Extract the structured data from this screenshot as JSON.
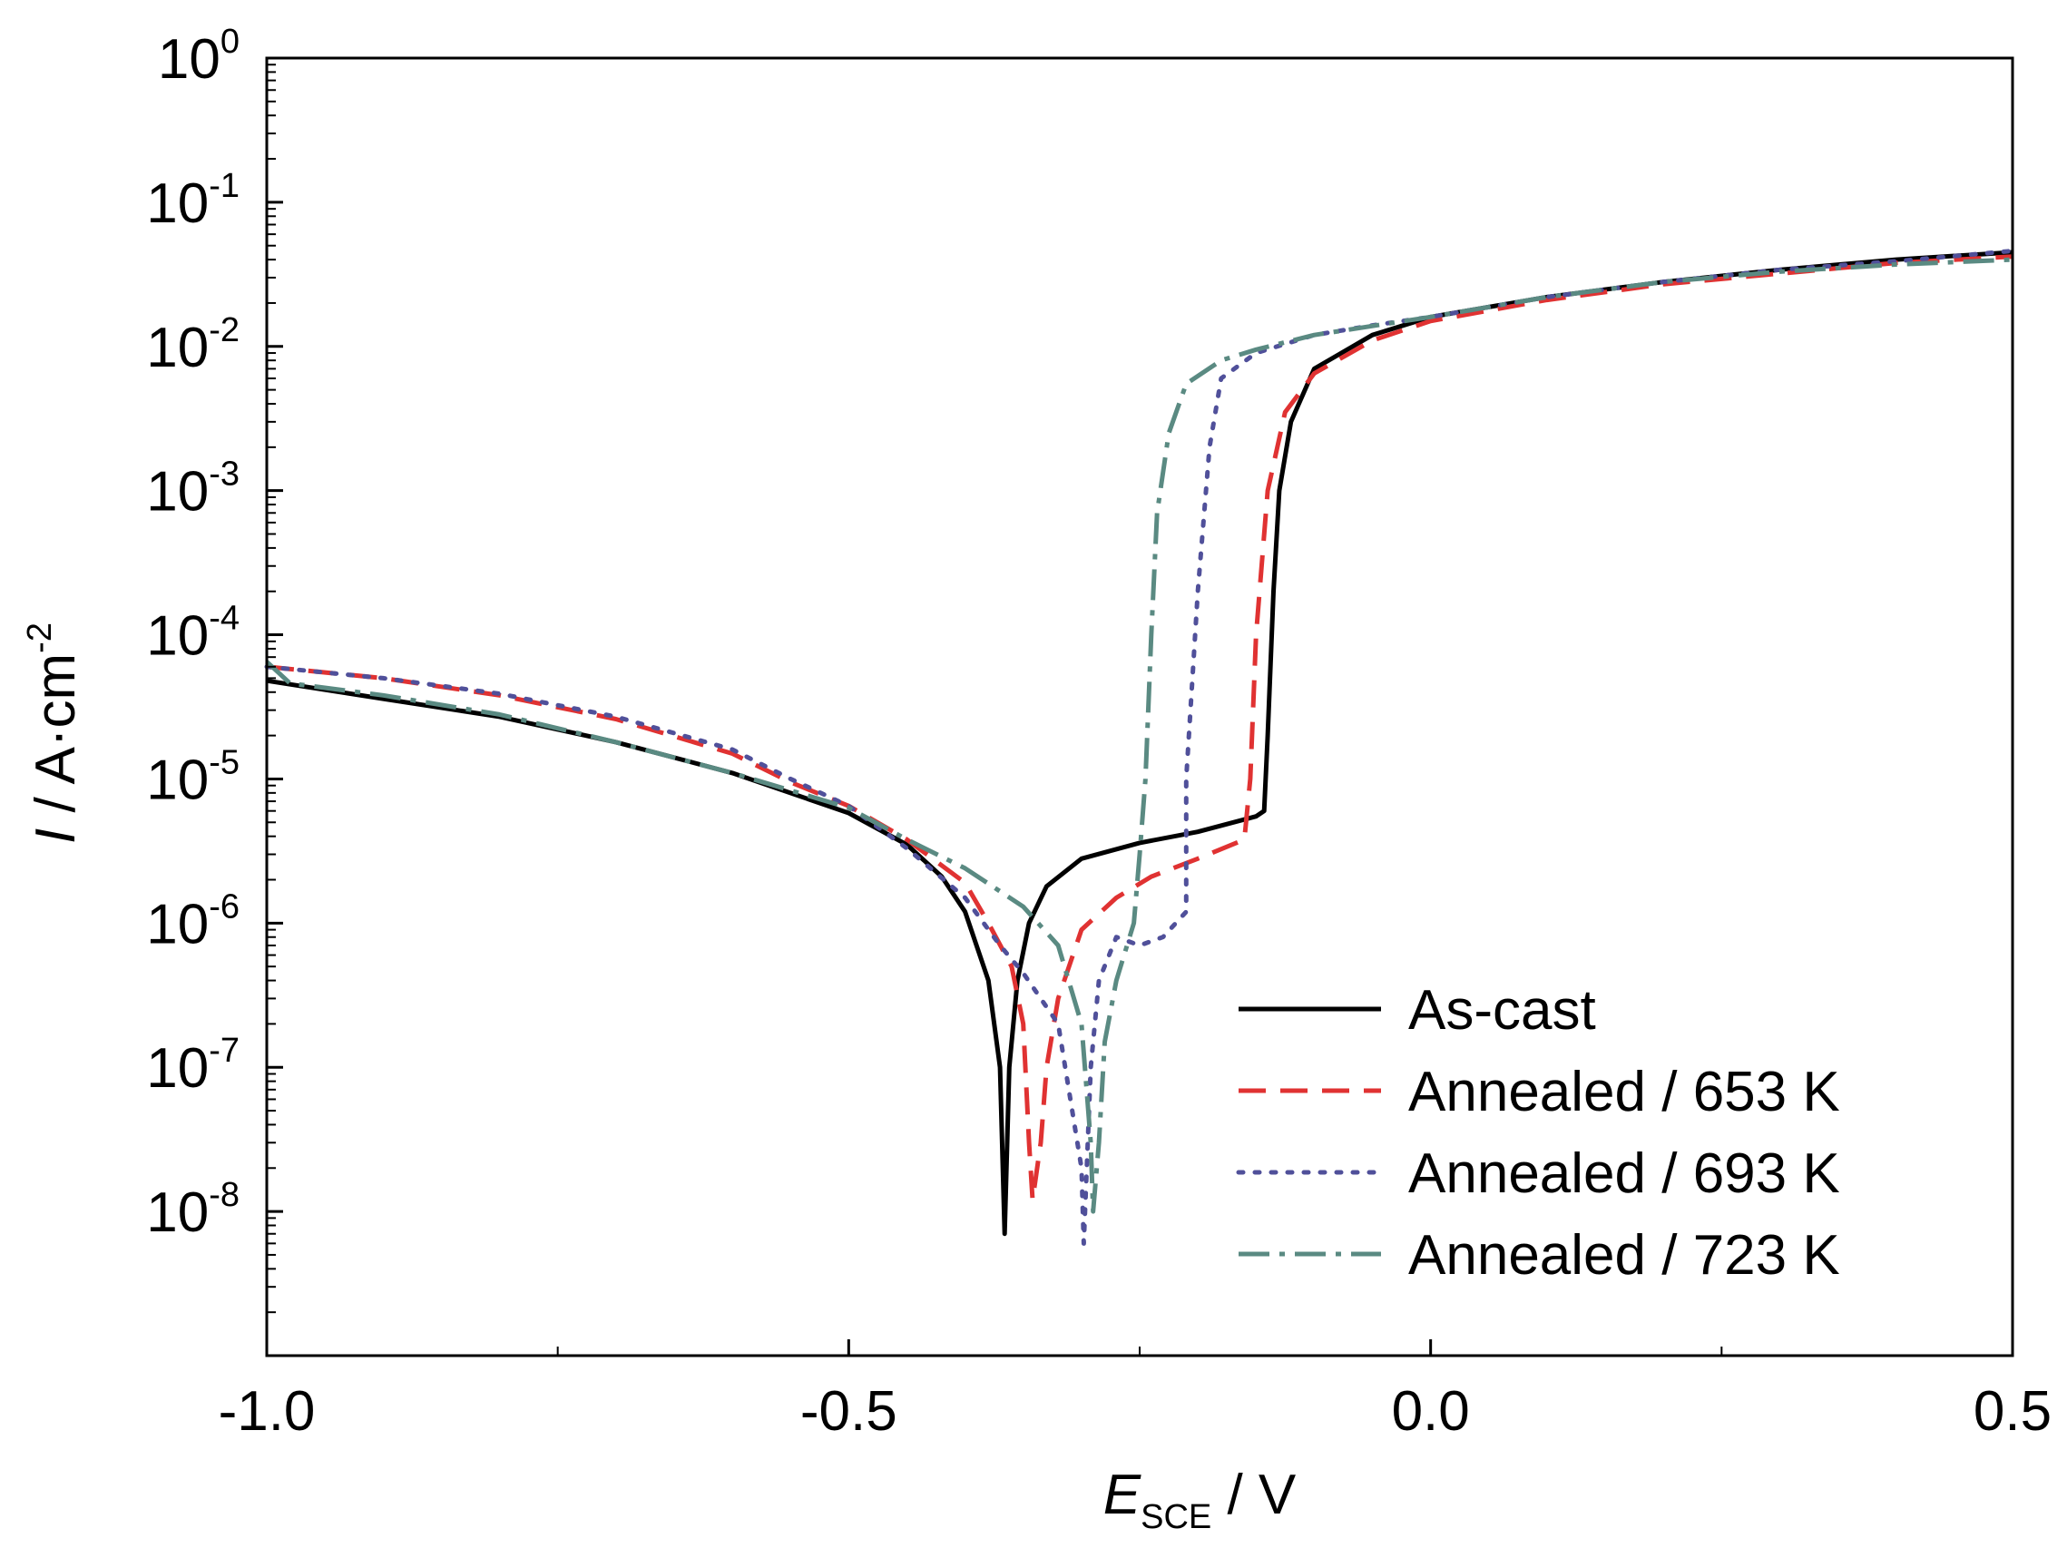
{
  "chart_data": {
    "type": "line",
    "title": "",
    "xlabel": {
      "main": "E",
      "sub": "SCE",
      "unit": " / V"
    },
    "ylabel": {
      "main": "I",
      "unit": " / A·cm",
      "sup": "-2"
    },
    "xlim": [
      -1.0,
      0.5
    ],
    "ylim": [
      1e-09,
      1
    ],
    "yscale": "log",
    "x_ticks": [
      {
        "value": -1.0,
        "label": "-1.0"
      },
      {
        "value": -0.5,
        "label": "-0.5"
      },
      {
        "value": 0.0,
        "label": "0.0"
      },
      {
        "value": 0.5,
        "label": "0.5"
      }
    ],
    "x_minor_ticks": [
      -0.75,
      -0.25,
      0.25
    ],
    "y_ticks": [
      {
        "exp": 0,
        "base": "10",
        "sup": "0"
      },
      {
        "exp": -1,
        "base": "10",
        "sup": "-1"
      },
      {
        "exp": -2,
        "base": "10",
        "sup": "-2"
      },
      {
        "exp": -3,
        "base": "10",
        "sup": "-3"
      },
      {
        "exp": -4,
        "base": "10",
        "sup": "-4"
      },
      {
        "exp": -5,
        "base": "10",
        "sup": "-5"
      },
      {
        "exp": -6,
        "base": "10",
        "sup": "-6"
      },
      {
        "exp": -7,
        "base": "10",
        "sup": "-7"
      },
      {
        "exp": -8,
        "base": "10",
        "sup": "-8"
      }
    ],
    "grid": false,
    "legend_position": "bottom-right",
    "series": [
      {
        "name": "As-cast",
        "color": "#000000",
        "dash": "solid",
        "points": [
          [
            -1.0,
            4.8e-05
          ],
          [
            -0.9,
            3.6e-05
          ],
          [
            -0.8,
            2.7e-05
          ],
          [
            -0.7,
            1.8e-05
          ],
          [
            -0.6,
            1.1e-05
          ],
          [
            -0.5,
            5.8e-06
          ],
          [
            -0.45,
            3.5e-06
          ],
          [
            -0.42,
            2.1e-06
          ],
          [
            -0.4,
            1.2e-06
          ],
          [
            -0.38,
            4e-07
          ],
          [
            -0.37,
            1e-07
          ],
          [
            -0.366,
            7e-09
          ],
          [
            -0.362,
            1e-07
          ],
          [
            -0.355,
            4e-07
          ],
          [
            -0.345,
            1e-06
          ],
          [
            -0.33,
            1.8e-06
          ],
          [
            -0.3,
            2.8e-06
          ],
          [
            -0.25,
            3.6e-06
          ],
          [
            -0.2,
            4.3e-06
          ],
          [
            -0.15,
            5.5e-06
          ],
          [
            -0.143,
            6e-06
          ],
          [
            -0.14,
            2e-05
          ],
          [
            -0.135,
            0.0002
          ],
          [
            -0.13,
            0.001
          ],
          [
            -0.12,
            0.003
          ],
          [
            -0.1,
            0.007
          ],
          [
            -0.05,
            0.012
          ],
          [
            0.0,
            0.016
          ],
          [
            0.1,
            0.022
          ],
          [
            0.2,
            0.028
          ],
          [
            0.3,
            0.034
          ],
          [
            0.4,
            0.04
          ],
          [
            0.5,
            0.045
          ]
        ]
      },
      {
        "name": "Annealed / 653 K",
        "color": "#e03232",
        "dash": "dashed",
        "points": [
          [
            -1.0,
            6e-05
          ],
          [
            -0.9,
            5e-05
          ],
          [
            -0.8,
            3.8e-05
          ],
          [
            -0.7,
            2.6e-05
          ],
          [
            -0.6,
            1.5e-05
          ],
          [
            -0.55,
            9.5e-06
          ],
          [
            -0.5,
            6.5e-06
          ],
          [
            -0.45,
            3.8e-06
          ],
          [
            -0.4,
            1.9e-06
          ],
          [
            -0.38,
            1e-06
          ],
          [
            -0.36,
            5e-07
          ],
          [
            -0.35,
            2e-07
          ],
          [
            -0.345,
            3e-08
          ],
          [
            -0.342,
            1.2e-08
          ],
          [
            -0.335,
            3e-08
          ],
          [
            -0.33,
            1e-07
          ],
          [
            -0.32,
            3e-07
          ],
          [
            -0.3,
            9e-07
          ],
          [
            -0.27,
            1.5e-06
          ],
          [
            -0.24,
            2.1e-06
          ],
          [
            -0.2,
            2.8e-06
          ],
          [
            -0.16,
            3.8e-06
          ],
          [
            -0.155,
            1e-05
          ],
          [
            -0.15,
            0.0001
          ],
          [
            -0.14,
            0.001
          ],
          [
            -0.125,
            0.0035
          ],
          [
            -0.1,
            0.0065
          ],
          [
            -0.05,
            0.011
          ],
          [
            0.0,
            0.015
          ],
          [
            0.1,
            0.021
          ],
          [
            0.2,
            0.027
          ],
          [
            0.3,
            0.032
          ],
          [
            0.4,
            0.038
          ],
          [
            0.5,
            0.042
          ]
        ]
      },
      {
        "name": "Annealed / 693 K",
        "color": "#50509a",
        "dash": "dotted",
        "points": [
          [
            -1.0,
            6e-05
          ],
          [
            -0.9,
            5e-05
          ],
          [
            -0.8,
            3.9e-05
          ],
          [
            -0.7,
            2.7e-05
          ],
          [
            -0.6,
            1.6e-05
          ],
          [
            -0.55,
            1e-05
          ],
          [
            -0.5,
            6.5e-06
          ],
          [
            -0.45,
            3.3e-06
          ],
          [
            -0.4,
            1.5e-06
          ],
          [
            -0.37,
            7e-07
          ],
          [
            -0.35,
            4.5e-07
          ],
          [
            -0.32,
            2e-07
          ],
          [
            -0.3,
            2e-08
          ],
          [
            -0.298,
            6e-09
          ],
          [
            -0.292,
            1e-07
          ],
          [
            -0.285,
            4e-07
          ],
          [
            -0.27,
            8e-07
          ],
          [
            -0.25,
            7e-07
          ],
          [
            -0.23,
            8e-07
          ],
          [
            -0.21,
            1.2e-06
          ],
          [
            -0.21,
            1e-05
          ],
          [
            -0.2,
            0.0002
          ],
          [
            -0.19,
            0.002
          ],
          [
            -0.18,
            0.006
          ],
          [
            -0.15,
            0.009
          ],
          [
            -0.1,
            0.012
          ],
          [
            -0.05,
            0.014
          ],
          [
            0.0,
            0.016
          ],
          [
            0.1,
            0.022
          ],
          [
            0.2,
            0.028
          ],
          [
            0.3,
            0.034
          ],
          [
            0.4,
            0.039
          ],
          [
            0.5,
            0.046
          ]
        ]
      },
      {
        "name": "Annealed / 723 K",
        "color": "#5a8a82",
        "dash": "dashdot",
        "points": [
          [
            -1.0,
            6.5e-05
          ],
          [
            -0.98,
            4.6e-05
          ],
          [
            -0.9,
            3.8e-05
          ],
          [
            -0.8,
            2.8e-05
          ],
          [
            -0.7,
            1.8e-05
          ],
          [
            -0.6,
            1.1e-05
          ],
          [
            -0.5,
            6.3e-06
          ],
          [
            -0.45,
            3.8e-06
          ],
          [
            -0.4,
            2.4e-06
          ],
          [
            -0.35,
            1.3e-06
          ],
          [
            -0.32,
            7e-07
          ],
          [
            -0.3,
            2e-07
          ],
          [
            -0.292,
            3e-08
          ],
          [
            -0.29,
            1e-08
          ],
          [
            -0.285,
            3e-08
          ],
          [
            -0.28,
            1.5e-07
          ],
          [
            -0.27,
            4e-07
          ],
          [
            -0.255,
            1e-06
          ],
          [
            -0.25,
            3e-06
          ],
          [
            -0.245,
            1e-05
          ],
          [
            -0.24,
            0.0001
          ],
          [
            -0.235,
            0.0007
          ],
          [
            -0.225,
            0.0025
          ],
          [
            -0.21,
            0.0055
          ],
          [
            -0.18,
            0.008
          ],
          [
            -0.15,
            0.0095
          ],
          [
            -0.1,
            0.012
          ],
          [
            0.0,
            0.016
          ],
          [
            0.1,
            0.022
          ],
          [
            0.2,
            0.028
          ],
          [
            0.3,
            0.033
          ],
          [
            0.4,
            0.037
          ],
          [
            0.5,
            0.04
          ]
        ]
      }
    ]
  }
}
